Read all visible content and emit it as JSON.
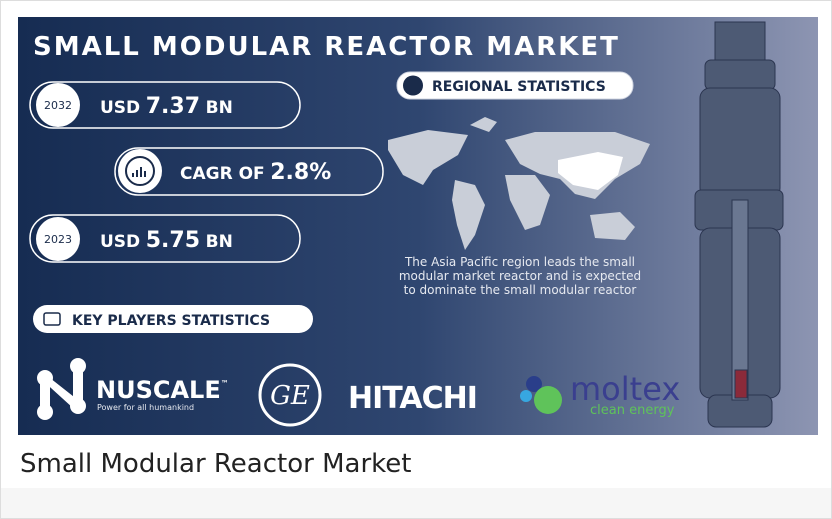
{
  "infographic": {
    "title": "SMALL MODULAR REACTOR MARKET",
    "stats": [
      {
        "year": "2032",
        "prefix": "USD",
        "value": "7.37",
        "unit": "BN"
      },
      {
        "label": "CAGR OF",
        "value": "2.8%"
      },
      {
        "year": "2023",
        "prefix": "USD",
        "value": "5.75",
        "unit": "BN"
      }
    ],
    "regional": {
      "heading": "REGIONAL STATISTICS",
      "lines": [
        "The Asia Pacific region leads the small",
        "modular market reactor and is expected",
        "to dominate the small modular reactor"
      ]
    },
    "key_players": {
      "heading": "KEY PLAYERS STATISTICS",
      "logos": [
        {
          "name": "NUSCALE",
          "mark": "™",
          "tagline": "Power for all humankind"
        },
        {
          "name": "GE"
        },
        {
          "name": "HITACHI"
        },
        {
          "name": "moltex",
          "tagline": "clean energy"
        }
      ]
    }
  },
  "caption": "Small Modular Reactor Market"
}
